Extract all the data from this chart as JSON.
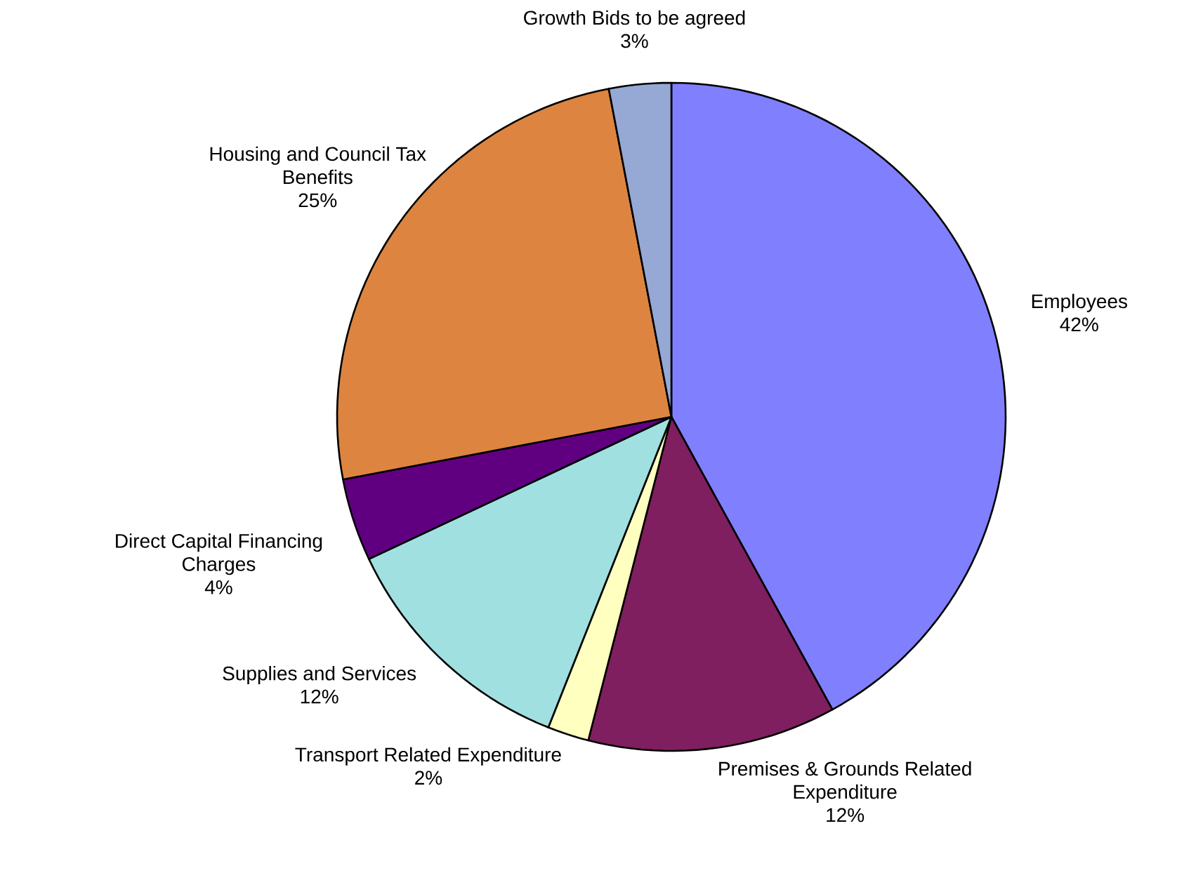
{
  "chart_data": {
    "type": "pie",
    "categories": [
      "Employees",
      "Premises & Grounds Related Expenditure",
      "Transport Related Expenditure",
      "Supplies and Services",
      "Direct Capital Financing Charges",
      "Housing and Council Tax Benefits",
      "Growth Bids to be agreed"
    ],
    "values": [
      42,
      12,
      2,
      12,
      4,
      25,
      3
    ],
    "value_labels": [
      "42%",
      "12%",
      "2%",
      "12%",
      "4%",
      "25%",
      "3%"
    ],
    "colors": [
      "#8080ff",
      "#7f1f5f",
      "#ffffc0",
      "#a0e0e0",
      "#600080",
      "#dd8540",
      "#96a8d4"
    ],
    "legend": false
  }
}
